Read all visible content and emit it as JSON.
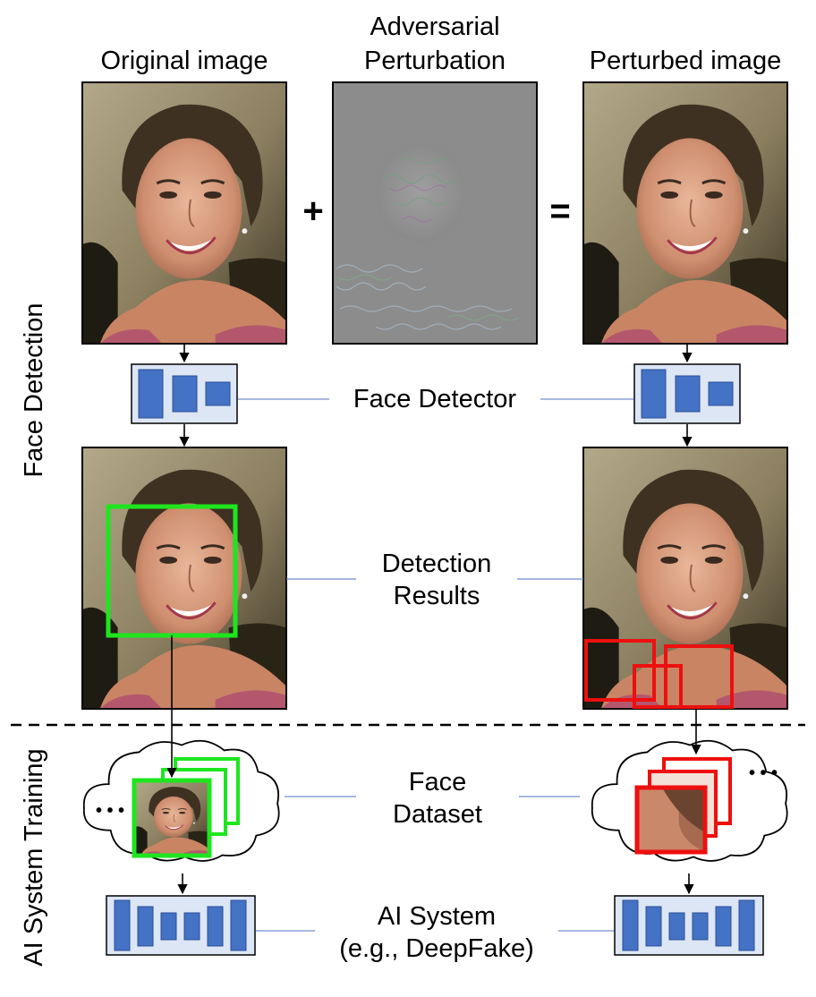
{
  "labels": {
    "original_image": "Original image",
    "adversarial_perturbation_line1": "Adversarial",
    "adversarial_perturbation_line2": "Perturbation",
    "perturbed_image": "Perturbed image",
    "plus": "+",
    "equals": "=",
    "face_detector": "Face Detector",
    "detection_results_line1": "Detection",
    "detection_results_line2": "Results",
    "face_dataset_line1": "Face",
    "face_dataset_line2": "Dataset",
    "ai_system_line1": "AI System",
    "ai_system_line2": "(e.g., DeepFake)",
    "section_face_detection": "Face Detection",
    "section_ai_training": "AI System Training",
    "ellipsis": "• • •"
  },
  "colors": {
    "block_fill": "#4472c4",
    "module_bg": "#dde6f5",
    "detect_good": "#1ee61e",
    "detect_bad": "#ee0f0f",
    "connector": "#6f8fd0"
  }
}
